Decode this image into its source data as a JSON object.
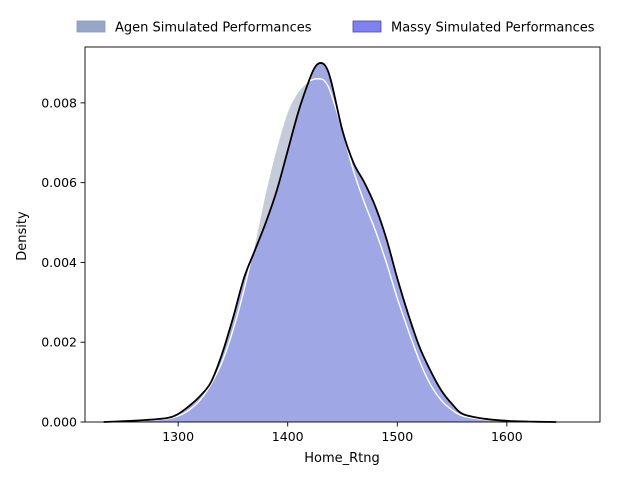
{
  "chart_data": {
    "type": "area",
    "title": "",
    "xlabel": "Home_Rtng",
    "ylabel": "Density",
    "xlim": [
      1215,
      1685
    ],
    "ylim": [
      0,
      0.0094
    ],
    "xticks": [
      1300,
      1400,
      1500,
      1600
    ],
    "xtick_labels": [
      "1300",
      "1400",
      "1500",
      "1600"
    ],
    "yticks": [
      0,
      0.002,
      0.004,
      0.006,
      0.008
    ],
    "ytick_labels": [
      "0.000",
      "0.002",
      "0.004",
      "0.006",
      "0.008"
    ],
    "grid": false,
    "legend_position": "top, outside above plot",
    "series": [
      {
        "name": "Agen Simulated Performances",
        "fill_color": "#c5cbd9",
        "legend_color": "#97a5c8",
        "line_color": "#ffffff",
        "x": [
          1232,
          1250,
          1270,
          1290,
          1300,
          1310,
          1320,
          1330,
          1340,
          1350,
          1360,
          1370,
          1380,
          1390,
          1400,
          1410,
          1420,
          1430,
          1435,
          1440,
          1450,
          1460,
          1470,
          1480,
          1490,
          1500,
          1510,
          1520,
          1530,
          1540,
          1550,
          1560,
          1580,
          1600,
          1622
        ],
        "y": [
          0.0,
          2e-05,
          4e-05,
          8e-05,
          0.00015,
          0.0003,
          0.00055,
          0.00095,
          0.0015,
          0.0023,
          0.0033,
          0.0045,
          0.0058,
          0.0069,
          0.0078,
          0.0083,
          0.00855,
          0.0086,
          0.0085,
          0.0082,
          0.0073,
          0.0063,
          0.0055,
          0.0048,
          0.004,
          0.0031,
          0.0023,
          0.00155,
          0.00095,
          0.00055,
          0.0003,
          0.00015,
          6e-05,
          2e-05,
          0.0
        ]
      },
      {
        "name": "Massy Simulated Performances",
        "fill_color": "#9ea6e4",
        "legend_color": "#8080f5",
        "line_color": "#000000",
        "x": [
          1232,
          1250,
          1270,
          1290,
          1300,
          1310,
          1320,
          1330,
          1340,
          1350,
          1360,
          1370,
          1380,
          1390,
          1400,
          1410,
          1420,
          1425,
          1430,
          1435,
          1440,
          1450,
          1460,
          1470,
          1480,
          1490,
          1500,
          1510,
          1520,
          1530,
          1540,
          1550,
          1560,
          1580,
          1600,
          1620,
          1645
        ],
        "y": [
          0.0,
          2e-05,
          5e-05,
          0.0001,
          0.0002,
          0.0004,
          0.00065,
          0.001,
          0.0017,
          0.0026,
          0.0036,
          0.0043,
          0.005,
          0.0058,
          0.0068,
          0.0078,
          0.0086,
          0.0089,
          0.009,
          0.0089,
          0.0085,
          0.0073,
          0.0065,
          0.006,
          0.0054,
          0.0046,
          0.0036,
          0.0027,
          0.0019,
          0.0013,
          0.0008,
          0.00045,
          0.0002,
          8e-05,
          3e-05,
          1e-05,
          0.0
        ]
      }
    ]
  }
}
